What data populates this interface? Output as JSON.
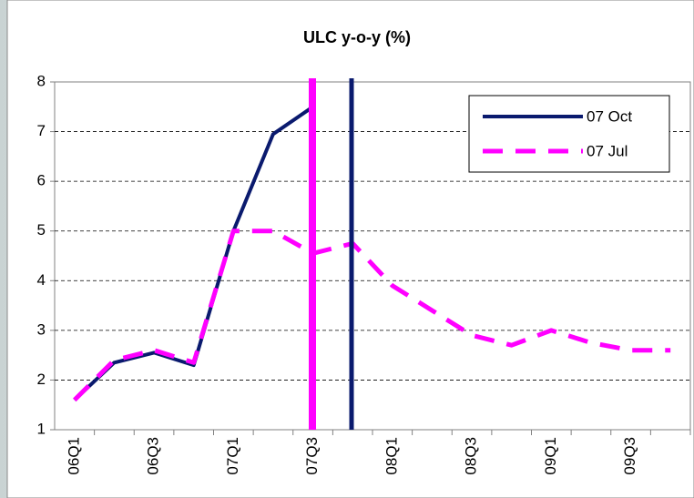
{
  "chart_data": {
    "type": "line",
    "title": "ULC y-o-y (%)",
    "categories": [
      "06Q1",
      null,
      "06Q3",
      null,
      "07Q1",
      null,
      "07Q3",
      null,
      "08Q1",
      null,
      "08Q3",
      null,
      "09Q1",
      null,
      "09Q3",
      null
    ],
    "series": [
      {
        "name": "07 Oct",
        "color": "#0a1a6e",
        "dash": "solid",
        "values": [
          1.6,
          2.35,
          2.55,
          2.3,
          5.0,
          6.95,
          7.5,
          null,
          null,
          null,
          null,
          null,
          null,
          null,
          null,
          null
        ]
      },
      {
        "name": "07 Jul",
        "color": "#ff00ff",
        "dash": "dashed",
        "values": [
          1.6,
          2.4,
          2.6,
          2.35,
          5.0,
          5.0,
          4.55,
          4.75,
          3.9,
          3.4,
          2.9,
          2.7,
          3.0,
          2.75,
          2.6,
          2.6
        ]
      }
    ],
    "ylim": [
      1,
      8
    ],
    "yticks": [
      1,
      2,
      3,
      4,
      5,
      6,
      7,
      8
    ],
    "grid": true,
    "legend": "top-right"
  }
}
